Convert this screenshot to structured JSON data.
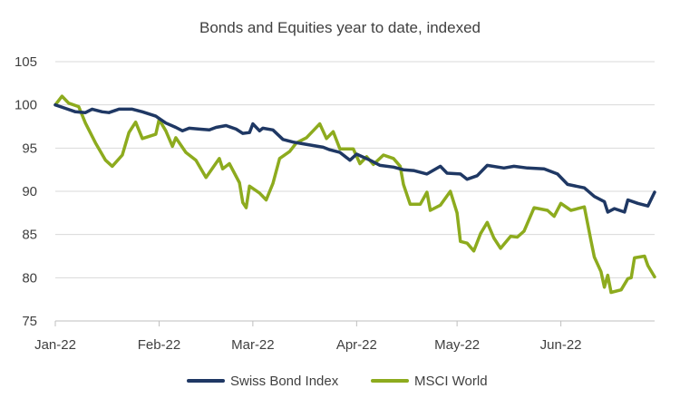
{
  "chart_data": {
    "type": "line",
    "title": "Bonds and Equities year to date, indexed",
    "xlabel": "",
    "ylabel": "",
    "ylim": [
      75,
      105
    ],
    "y_ticks": [
      75,
      80,
      85,
      90,
      95,
      100,
      105
    ],
    "x_range": [
      "2022-01-01",
      "2022-06-29"
    ],
    "x_ticks": [
      {
        "label": "Jan-22",
        "date": "2022-01-01"
      },
      {
        "label": "Feb-22",
        "date": "2022-02-01"
      },
      {
        "label": "Mar-22",
        "date": "2022-03-01"
      },
      {
        "label": "Apr-22",
        "date": "2022-04-01"
      },
      {
        "label": "May-22",
        "date": "2022-05-01"
      },
      {
        "label": "Jun-22",
        "date": "2022-06-01"
      }
    ],
    "grid": "horizontal",
    "legend_position": "bottom",
    "series": [
      {
        "name": "Swiss Bond Index",
        "color": "#1f3864",
        "points": [
          [
            "2022-01-01",
            100.0
          ],
          [
            "2022-01-04",
            99.6
          ],
          [
            "2022-01-07",
            99.2
          ],
          [
            "2022-01-10",
            99.1
          ],
          [
            "2022-01-12",
            99.5
          ],
          [
            "2022-01-15",
            99.2
          ],
          [
            "2022-01-17",
            99.1
          ],
          [
            "2022-01-20",
            99.5
          ],
          [
            "2022-01-24",
            99.5
          ],
          [
            "2022-01-27",
            99.2
          ],
          [
            "2022-01-31",
            98.7
          ],
          [
            "2022-02-03",
            97.9
          ],
          [
            "2022-02-06",
            97.4
          ],
          [
            "2022-02-08",
            97.0
          ],
          [
            "2022-02-10",
            97.3
          ],
          [
            "2022-02-13",
            97.2
          ],
          [
            "2022-02-16",
            97.1
          ],
          [
            "2022-02-18",
            97.4
          ],
          [
            "2022-02-21",
            97.6
          ],
          [
            "2022-02-24",
            97.2
          ],
          [
            "2022-02-26",
            96.7
          ],
          [
            "2022-02-28",
            96.8
          ],
          [
            "2022-03-01",
            97.8
          ],
          [
            "2022-03-03",
            97.0
          ],
          [
            "2022-03-04",
            97.3
          ],
          [
            "2022-03-07",
            97.1
          ],
          [
            "2022-03-10",
            96.0
          ],
          [
            "2022-03-13",
            95.7
          ],
          [
            "2022-03-16",
            95.5
          ],
          [
            "2022-03-19",
            95.3
          ],
          [
            "2022-03-22",
            95.1
          ],
          [
            "2022-03-24",
            94.8
          ],
          [
            "2022-03-27",
            94.5
          ],
          [
            "2022-03-30",
            93.6
          ],
          [
            "2022-04-01",
            94.3
          ],
          [
            "2022-04-05",
            93.6
          ],
          [
            "2022-04-08",
            93.0
          ],
          [
            "2022-04-12",
            92.8
          ],
          [
            "2022-04-15",
            92.5
          ],
          [
            "2022-04-18",
            92.4
          ],
          [
            "2022-04-22",
            92.0
          ],
          [
            "2022-04-26",
            92.9
          ],
          [
            "2022-04-28",
            92.1
          ],
          [
            "2022-05-02",
            92.0
          ],
          [
            "2022-05-04",
            91.4
          ],
          [
            "2022-05-07",
            91.8
          ],
          [
            "2022-05-10",
            93.0
          ],
          [
            "2022-05-15",
            92.7
          ],
          [
            "2022-05-18",
            92.9
          ],
          [
            "2022-05-22",
            92.7
          ],
          [
            "2022-05-27",
            92.6
          ],
          [
            "2022-05-31",
            92.0
          ],
          [
            "2022-06-03",
            90.8
          ],
          [
            "2022-06-08",
            90.4
          ],
          [
            "2022-06-11",
            89.4
          ],
          [
            "2022-06-14",
            88.8
          ],
          [
            "2022-06-15",
            87.6
          ],
          [
            "2022-06-17",
            88.0
          ],
          [
            "2022-06-20",
            87.6
          ],
          [
            "2022-06-21",
            89.0
          ],
          [
            "2022-06-24",
            88.6
          ],
          [
            "2022-06-27",
            88.3
          ],
          [
            "2022-06-29",
            89.9
          ]
        ]
      },
      {
        "name": "MSCI World",
        "color": "#8dab1e",
        "points": [
          [
            "2022-01-01",
            100.0
          ],
          [
            "2022-01-03",
            101.0
          ],
          [
            "2022-01-05",
            100.2
          ],
          [
            "2022-01-08",
            99.8
          ],
          [
            "2022-01-10",
            97.9
          ],
          [
            "2022-01-13",
            95.6
          ],
          [
            "2022-01-16",
            93.6
          ],
          [
            "2022-01-18",
            92.9
          ],
          [
            "2022-01-21",
            94.2
          ],
          [
            "2022-01-23",
            96.8
          ],
          [
            "2022-01-25",
            98.0
          ],
          [
            "2022-01-27",
            96.1
          ],
          [
            "2022-01-31",
            96.6
          ],
          [
            "2022-02-01",
            98.3
          ],
          [
            "2022-02-03",
            97.0
          ],
          [
            "2022-02-05",
            95.2
          ],
          [
            "2022-02-06",
            96.2
          ],
          [
            "2022-02-09",
            94.5
          ],
          [
            "2022-02-12",
            93.6
          ],
          [
            "2022-02-15",
            91.6
          ],
          [
            "2022-02-19",
            93.8
          ],
          [
            "2022-02-20",
            92.6
          ],
          [
            "2022-02-22",
            93.2
          ],
          [
            "2022-02-25",
            91.0
          ],
          [
            "2022-02-26",
            88.7
          ],
          [
            "2022-02-27",
            88.1
          ],
          [
            "2022-02-28",
            90.6
          ],
          [
            "2022-03-03",
            89.8
          ],
          [
            "2022-03-05",
            89.0
          ],
          [
            "2022-03-07",
            90.9
          ],
          [
            "2022-03-09",
            93.8
          ],
          [
            "2022-03-12",
            94.6
          ],
          [
            "2022-03-14",
            95.6
          ],
          [
            "2022-03-17",
            96.2
          ],
          [
            "2022-03-21",
            97.8
          ],
          [
            "2022-03-23",
            96.1
          ],
          [
            "2022-03-25",
            96.9
          ],
          [
            "2022-03-27",
            94.9
          ],
          [
            "2022-03-31",
            94.9
          ],
          [
            "2022-04-02",
            93.2
          ],
          [
            "2022-04-04",
            94.0
          ],
          [
            "2022-04-06",
            93.1
          ],
          [
            "2022-04-09",
            94.2
          ],
          [
            "2022-04-12",
            93.8
          ],
          [
            "2022-04-14",
            92.9
          ],
          [
            "2022-04-15",
            90.8
          ],
          [
            "2022-04-17",
            88.5
          ],
          [
            "2022-04-20",
            88.5
          ],
          [
            "2022-04-22",
            89.9
          ],
          [
            "2022-04-23",
            87.8
          ],
          [
            "2022-04-26",
            88.4
          ],
          [
            "2022-04-29",
            90.0
          ],
          [
            "2022-05-01",
            87.5
          ],
          [
            "2022-05-02",
            84.2
          ],
          [
            "2022-05-04",
            84.0
          ],
          [
            "2022-05-06",
            83.1
          ],
          [
            "2022-05-08",
            85.1
          ],
          [
            "2022-05-10",
            86.4
          ],
          [
            "2022-05-12",
            84.6
          ],
          [
            "2022-05-14",
            83.4
          ],
          [
            "2022-05-17",
            84.8
          ],
          [
            "2022-05-19",
            84.7
          ],
          [
            "2022-05-21",
            85.4
          ],
          [
            "2022-05-24",
            88.1
          ],
          [
            "2022-05-28",
            87.8
          ],
          [
            "2022-05-30",
            87.1
          ],
          [
            "2022-06-01",
            88.6
          ],
          [
            "2022-06-04",
            87.8
          ],
          [
            "2022-06-06",
            88.0
          ],
          [
            "2022-06-08",
            88.2
          ],
          [
            "2022-06-10",
            84.3
          ],
          [
            "2022-06-11",
            82.4
          ],
          [
            "2022-06-13",
            80.7
          ],
          [
            "2022-06-14",
            78.9
          ],
          [
            "2022-06-15",
            80.3
          ],
          [
            "2022-06-16",
            78.3
          ],
          [
            "2022-06-19",
            78.6
          ],
          [
            "2022-06-21",
            79.9
          ],
          [
            "2022-06-22",
            80.0
          ],
          [
            "2022-06-23",
            82.3
          ],
          [
            "2022-06-26",
            82.5
          ],
          [
            "2022-06-27",
            81.4
          ],
          [
            "2022-06-29",
            80.1
          ]
        ]
      }
    ]
  }
}
